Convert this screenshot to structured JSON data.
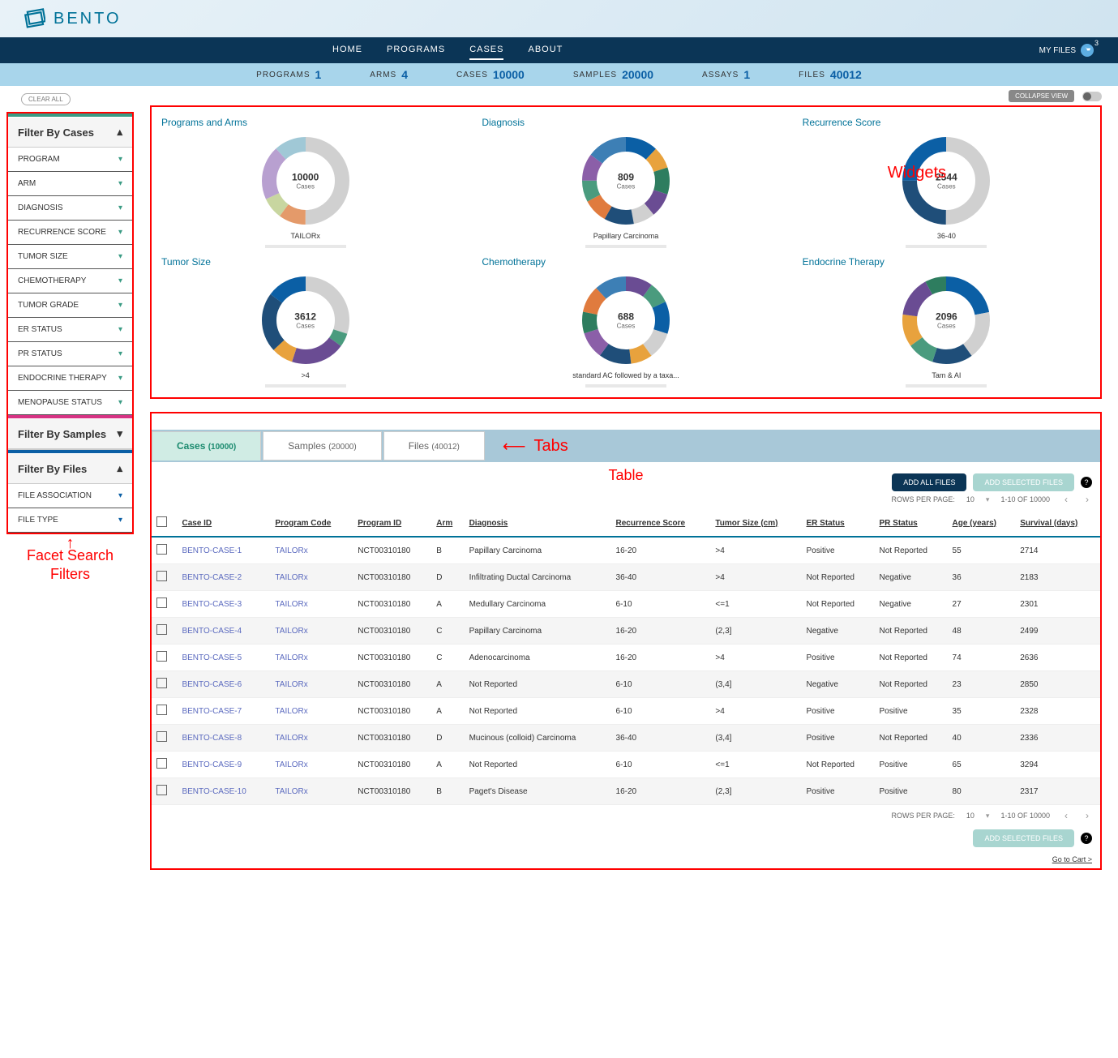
{
  "brand": "BENTO",
  "nav": {
    "home": "HOME",
    "programs": "PROGRAMS",
    "cases": "CASES",
    "about": "ABOUT",
    "myfiles": "MY FILES",
    "cart_count": "3"
  },
  "stats": {
    "programs": {
      "label": "PROGRAMS",
      "value": "1"
    },
    "arms": {
      "label": "ARMS",
      "value": "4"
    },
    "cases": {
      "label": "CASES",
      "value": "10000"
    },
    "samples": {
      "label": "SAMPLES",
      "value": "20000"
    },
    "assays": {
      "label": "ASSAYS",
      "value": "1"
    },
    "files": {
      "label": "FILES",
      "value": "40012"
    }
  },
  "sidebar": {
    "clear": "CLEAR ALL",
    "cases_header": "Filter By Cases",
    "cases_items": [
      "PROGRAM",
      "ARM",
      "DIAGNOSIS",
      "RECURRENCE SCORE",
      "TUMOR SIZE",
      "CHEMOTHERAPY",
      "TUMOR GRADE",
      "ER STATUS",
      "PR STATUS",
      "ENDOCRINE THERAPY",
      "MENOPAUSE STATUS"
    ],
    "samples_header": "Filter By Samples",
    "files_header": "Filter By Files",
    "files_items": [
      "FILE ASSOCIATION",
      "FILE TYPE"
    ]
  },
  "collapse": "COLLAPSE VIEW",
  "annotations": {
    "widgets": "Widgets",
    "tabs": "Tabs",
    "table": "Table",
    "facet": "Facet Search\nFilters"
  },
  "widgets": [
    {
      "title": "Programs and Arms",
      "center_num": "10000",
      "center_lbl": "Cases",
      "caption": "TAILORx",
      "slices": [
        {
          "c": "#d0d0d0",
          "v": 50
        },
        {
          "c": "#e49a6a",
          "v": 10
        },
        {
          "c": "#c8d6a0",
          "v": 8
        },
        {
          "c": "#b8a0d0",
          "v": 20
        },
        {
          "c": "#a0c8d6",
          "v": 12
        }
      ]
    },
    {
      "title": "Diagnosis",
      "center_num": "809",
      "center_lbl": "Cases",
      "caption": "Papillary Carcinoma",
      "slices": [
        {
          "c": "#0b5fa5",
          "v": 12
        },
        {
          "c": "#e8a23d",
          "v": 8
        },
        {
          "c": "#2e7d5f",
          "v": 10
        },
        {
          "c": "#6a4c93",
          "v": 9
        },
        {
          "c": "#d0d0d0",
          "v": 8
        },
        {
          "c": "#1f4e79",
          "v": 11
        },
        {
          "c": "#e07b3e",
          "v": 9
        },
        {
          "c": "#4a9b7e",
          "v": 8
        },
        {
          "c": "#8b5fa8",
          "v": 10
        },
        {
          "c": "#3d7fb5",
          "v": 15
        }
      ]
    },
    {
      "title": "Recurrence Score",
      "center_num": "2544",
      "center_lbl": "Cases",
      "caption": "36-40",
      "slices": [
        {
          "c": "#d0d0d0",
          "v": 50
        },
        {
          "c": "#1f4e79",
          "v": 25
        },
        {
          "c": "#0b5fa5",
          "v": 25
        }
      ]
    },
    {
      "title": "Tumor Size",
      "center_num": "3612",
      "center_lbl": "Cases",
      "caption": ">4",
      "slices": [
        {
          "c": "#d0d0d0",
          "v": 30
        },
        {
          "c": "#4a9b7e",
          "v": 5
        },
        {
          "c": "#6a4c93",
          "v": 20
        },
        {
          "c": "#e8a23d",
          "v": 8
        },
        {
          "c": "#1f4e79",
          "v": 22
        },
        {
          "c": "#0b5fa5",
          "v": 15
        }
      ]
    },
    {
      "title": "Chemotherapy",
      "center_num": "688",
      "center_lbl": "Cases",
      "caption": "standard AC followed by a taxa...",
      "slices": [
        {
          "c": "#6a4c93",
          "v": 10
        },
        {
          "c": "#4a9b7e",
          "v": 8
        },
        {
          "c": "#0b5fa5",
          "v": 12
        },
        {
          "c": "#d0d0d0",
          "v": 10
        },
        {
          "c": "#e8a23d",
          "v": 8
        },
        {
          "c": "#1f4e79",
          "v": 12
        },
        {
          "c": "#8b5fa8",
          "v": 10
        },
        {
          "c": "#2e7d5f",
          "v": 8
        },
        {
          "c": "#e07b3e",
          "v": 10
        },
        {
          "c": "#3d7fb5",
          "v": 12
        }
      ]
    },
    {
      "title": "Endocrine Therapy",
      "center_num": "2096",
      "center_lbl": "Cases",
      "caption": "Tam & AI",
      "slices": [
        {
          "c": "#0b5fa5",
          "v": 22
        },
        {
          "c": "#d0d0d0",
          "v": 18
        },
        {
          "c": "#1f4e79",
          "v": 15
        },
        {
          "c": "#4a9b7e",
          "v": 10
        },
        {
          "c": "#e8a23d",
          "v": 12
        },
        {
          "c": "#6a4c93",
          "v": 15
        },
        {
          "c": "#2e7d5f",
          "v": 8
        }
      ]
    }
  ],
  "tabs": {
    "cases": {
      "label": "Cases",
      "count": "(10000)"
    },
    "samples": {
      "label": "Samples",
      "count": "(20000)"
    },
    "files": {
      "label": "Files",
      "count": "(40012)"
    }
  },
  "buttons": {
    "add_all": "ADD ALL FILES",
    "add_selected": "ADD SELECTED FILES"
  },
  "pager": {
    "rpp_label": "ROWS PER PAGE:",
    "rpp_value": "10",
    "range": "1-10 OF 10000"
  },
  "table": {
    "columns": [
      "Case ID",
      "Program Code",
      "Program ID",
      "Arm",
      "Diagnosis",
      "Recurrence Score",
      "Tumor Size (cm)",
      "ER Status",
      "PR Status",
      "Age (years)",
      "Survival (days)"
    ],
    "rows": [
      [
        "BENTO-CASE-1",
        "TAILORx",
        "NCT00310180",
        "B",
        "Papillary Carcinoma",
        "16-20",
        ">4",
        "Positive",
        "Not Reported",
        "55",
        "2714"
      ],
      [
        "BENTO-CASE-2",
        "TAILORx",
        "NCT00310180",
        "D",
        "Infiltrating Ductal Carcinoma",
        "36-40",
        ">4",
        "Not Reported",
        "Negative",
        "36",
        "2183"
      ],
      [
        "BENTO-CASE-3",
        "TAILORx",
        "NCT00310180",
        "A",
        "Medullary Carcinoma",
        "6-10",
        "<=1",
        "Not Reported",
        "Negative",
        "27",
        "2301"
      ],
      [
        "BENTO-CASE-4",
        "TAILORx",
        "NCT00310180",
        "C",
        "Papillary Carcinoma",
        "16-20",
        "(2,3]",
        "Negative",
        "Not Reported",
        "48",
        "2499"
      ],
      [
        "BENTO-CASE-5",
        "TAILORx",
        "NCT00310180",
        "C",
        "Adenocarcinoma",
        "16-20",
        ">4",
        "Positive",
        "Not Reported",
        "74",
        "2636"
      ],
      [
        "BENTO-CASE-6",
        "TAILORx",
        "NCT00310180",
        "A",
        "Not Reported",
        "6-10",
        "(3,4]",
        "Negative",
        "Not Reported",
        "23",
        "2850"
      ],
      [
        "BENTO-CASE-7",
        "TAILORx",
        "NCT00310180",
        "A",
        "Not Reported",
        "6-10",
        ">4",
        "Positive",
        "Positive",
        "35",
        "2328"
      ],
      [
        "BENTO-CASE-8",
        "TAILORx",
        "NCT00310180",
        "D",
        "Mucinous (colloid) Carcinoma",
        "36-40",
        "(3,4]",
        "Positive",
        "Not Reported",
        "40",
        "2336"
      ],
      [
        "BENTO-CASE-9",
        "TAILORx",
        "NCT00310180",
        "A",
        "Not Reported",
        "6-10",
        "<=1",
        "Not Reported",
        "Positive",
        "65",
        "3294"
      ],
      [
        "BENTO-CASE-10",
        "TAILORx",
        "NCT00310180",
        "B",
        "Paget's Disease",
        "16-20",
        "(2,3]",
        "Positive",
        "Positive",
        "80",
        "2317"
      ]
    ]
  },
  "footer_link": "Go to Cart >"
}
